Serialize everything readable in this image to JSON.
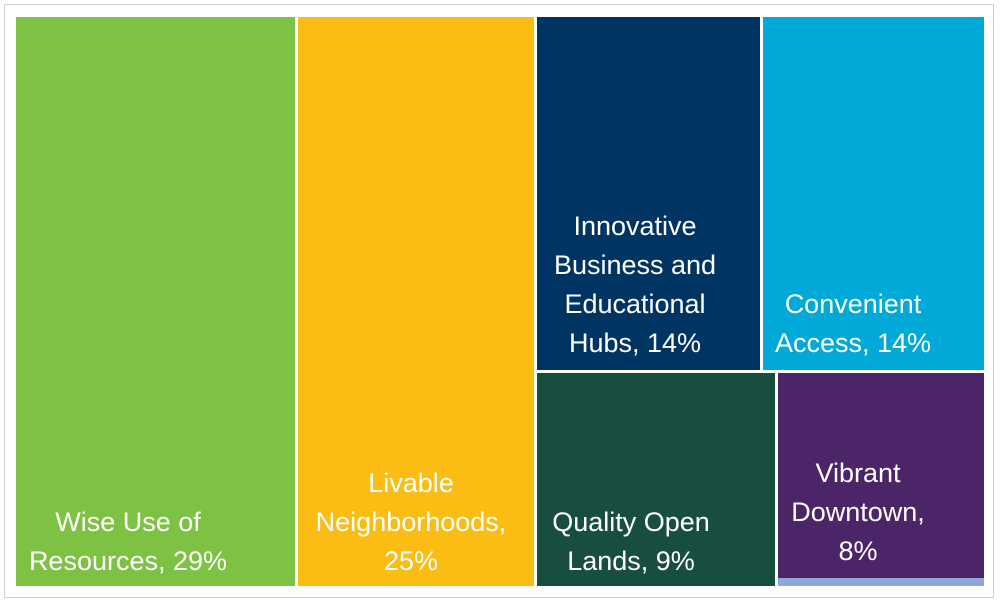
{
  "chart_data": {
    "type": "treemap",
    "title": "",
    "items": [
      {
        "name": "Wise Use of Resources",
        "value": 29,
        "color": "#7DC242",
        "label_lines": [
          "Wise Use of",
          "Resources, 29%"
        ]
      },
      {
        "name": "Livable Neighborhoods",
        "value": 25,
        "color": "#FBBD13",
        "label_lines": [
          "Livable",
          "Neighborhoods,",
          "25%"
        ]
      },
      {
        "name": "Innovative Business and Educational Hubs",
        "value": 14,
        "color": "#003462",
        "label_lines": [
          "Innovative",
          "Business and",
          "Educational",
          "Hubs, 14%"
        ]
      },
      {
        "name": "Convenient Access",
        "value": 14,
        "color": "#00A9D8",
        "label_lines": [
          "Convenient",
          "Access, 14%"
        ]
      },
      {
        "name": "Quality Open Lands",
        "value": 9,
        "color": "#174E40",
        "label_lines": [
          "Quality Open",
          "Lands, 9%"
        ]
      },
      {
        "name": "Vibrant Downtown",
        "value": 8,
        "color": "#4B2568",
        "label_lines": [
          "Vibrant",
          "Downtown,",
          "8%"
        ]
      },
      {
        "name": "",
        "value": 1,
        "color": "#8DA9D8",
        "label_lines": []
      }
    ]
  }
}
